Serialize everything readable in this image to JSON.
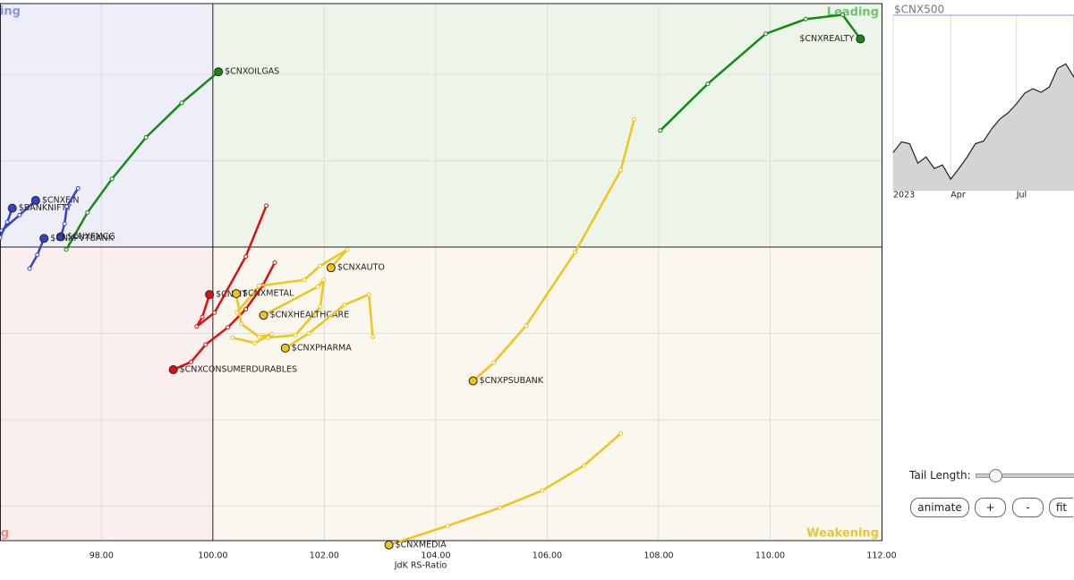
{
  "chart_data": [
    {
      "type": "rrg",
      "xlabel": "JdK RS-Ratio",
      "xlim": [
        96.18,
        112
      ],
      "ylim": [
        96.6,
        102.82
      ],
      "xticks": [
        {
          "value": 98,
          "label": "98.00"
        },
        {
          "value": 100,
          "label": "100.00"
        },
        {
          "value": 102,
          "label": "102.00"
        },
        {
          "value": 104,
          "label": "104.00"
        },
        {
          "value": 106,
          "label": "106.00"
        },
        {
          "value": 108,
          "label": "108.00"
        },
        {
          "value": 110,
          "label": "110.00"
        },
        {
          "value": 112,
          "label": "112.00"
        }
      ],
      "yticks": [
        97,
        98,
        99,
        101,
        102
      ],
      "grid": true,
      "center": {
        "x": 100,
        "y": 100
      },
      "quadrants": {
        "leading": "Leading",
        "weakening": "Weakening",
        "lagging": "Lagging",
        "improving": "Improving"
      },
      "series": [
        {
          "name": "$CNXREALTY",
          "color": "#138a13",
          "x": [
            108.03,
            108.88,
            109.92,
            110.64,
            111.3,
            111.62
          ],
          "y": [
            101.35,
            101.89,
            102.47,
            102.64,
            102.69,
            102.41
          ]
        },
        {
          "name": "$CNXOILGAS",
          "color": "#138a13",
          "x": [
            97.37,
            97.75,
            98.19,
            98.8,
            99.44,
            100.1
          ],
          "y": [
            99.97,
            100.4,
            100.79,
            101.27,
            101.67,
            102.03
          ]
        },
        {
          "name": "$CNXFIN",
          "color": "#3344cc",
          "x": [
            96.21,
            96.53,
            96.82
          ],
          "y": [
            100.19,
            100.37,
            100.54
          ]
        },
        {
          "name": "$BANKNIFTY",
          "color": "#3344cc",
          "x": [
            96.18,
            96.31,
            96.4
          ],
          "y": [
            100.11,
            100.29,
            100.45
          ]
        },
        {
          "name": "$CNXFMCG",
          "color": "#3344cc",
          "x": [
            97.58,
            97.38,
            97.34,
            97.27
          ],
          "y": [
            100.68,
            100.47,
            100.27,
            100.12
          ]
        },
        {
          "name": "$CNXPVTBANK",
          "color": "#3344cc",
          "x": [
            96.71,
            96.85,
            96.97
          ],
          "y": [
            99.75,
            99.91,
            100.1
          ]
        },
        {
          "name": "$CNXCONSUMERDURABLES",
          "color": "#dd1111",
          "x": [
            101.11,
            100.9,
            100.59,
            100.27,
            99.87,
            99.61,
            99.29
          ],
          "y": [
            99.82,
            99.56,
            99.28,
            99.07,
            98.87,
            98.67,
            98.58
          ]
        },
        {
          "name": "$CNXIT",
          "color": "#dd1111",
          "x": [
            100.96,
            100.59,
            100.03,
            99.71,
            99.81,
            99.94
          ],
          "y": [
            100.48,
            99.89,
            99.24,
            99.08,
            99.19,
            99.45
          ]
        },
        {
          "name": "$CNXAUTO",
          "color": "#f0c419",
          "x": [
            100.43,
            100.83,
            101.64,
            101.92,
            102.41,
            102.12
          ],
          "y": [
            99.24,
            99.55,
            99.62,
            99.78,
            99.97,
            99.76
          ]
        },
        {
          "name": "$CNXMETAL",
          "color": "#f0c419",
          "x": [
            100.35,
            100.75,
            101.06,
            100.83,
            100.51,
            100.42
          ],
          "y": [
            98.95,
            98.89,
            98.99,
            98.96,
            99.11,
            99.46
          ]
        },
        {
          "name": "$CNXHEALTHCARE",
          "color": "#f0c419",
          "x": [
            100.99,
            101.48,
            101.93,
            101.99,
            101.88,
            100.91
          ],
          "y": [
            98.95,
            98.98,
            99.31,
            99.62,
            99.54,
            99.21
          ]
        },
        {
          "name": "$CNXPHARMA",
          "color": "#f0c419",
          "x": [
            102.87,
            102.8,
            102.36,
            101.72,
            101.3
          ],
          "y": [
            98.96,
            99.45,
            99.33,
            99.0,
            98.83
          ]
        },
        {
          "name": "$CNXPSUBANK",
          "color": "#f0c419",
          "x": [
            107.56,
            107.32,
            106.5,
            105.62,
            105.04,
            104.67
          ],
          "y": [
            101.48,
            100.89,
            99.94,
            99.09,
            98.66,
            98.45
          ]
        },
        {
          "name": "$CNXMEDIA",
          "color": "#f0c419",
          "x": [
            107.32,
            106.66,
            105.91,
            105.15,
            104.21,
            103.16
          ],
          "y": [
            97.84,
            97.47,
            97.18,
            96.98,
            96.77,
            96.55
          ]
        }
      ]
    },
    {
      "type": "area",
      "title": "$CNX500",
      "categories": [
        "2023",
        null,
        null,
        null,
        null,
        null,
        null,
        "Apr",
        null,
        null,
        null,
        null,
        null,
        null,
        null,
        "Jul",
        null,
        null,
        null,
        null,
        null,
        null,
        null
      ],
      "values": [
        42,
        54,
        52,
        30,
        37,
        24,
        28,
        12,
        24,
        37,
        52,
        55,
        69,
        80,
        87,
        97,
        109,
        114,
        110,
        116,
        137,
        142,
        127
      ],
      "ylim": [
        0,
        197
      ],
      "color": "#222222"
    }
  ],
  "controls": {
    "tail_length_label": "Tail Length:",
    "buttons": [
      "animate",
      "+",
      "-",
      "fit"
    ]
  }
}
